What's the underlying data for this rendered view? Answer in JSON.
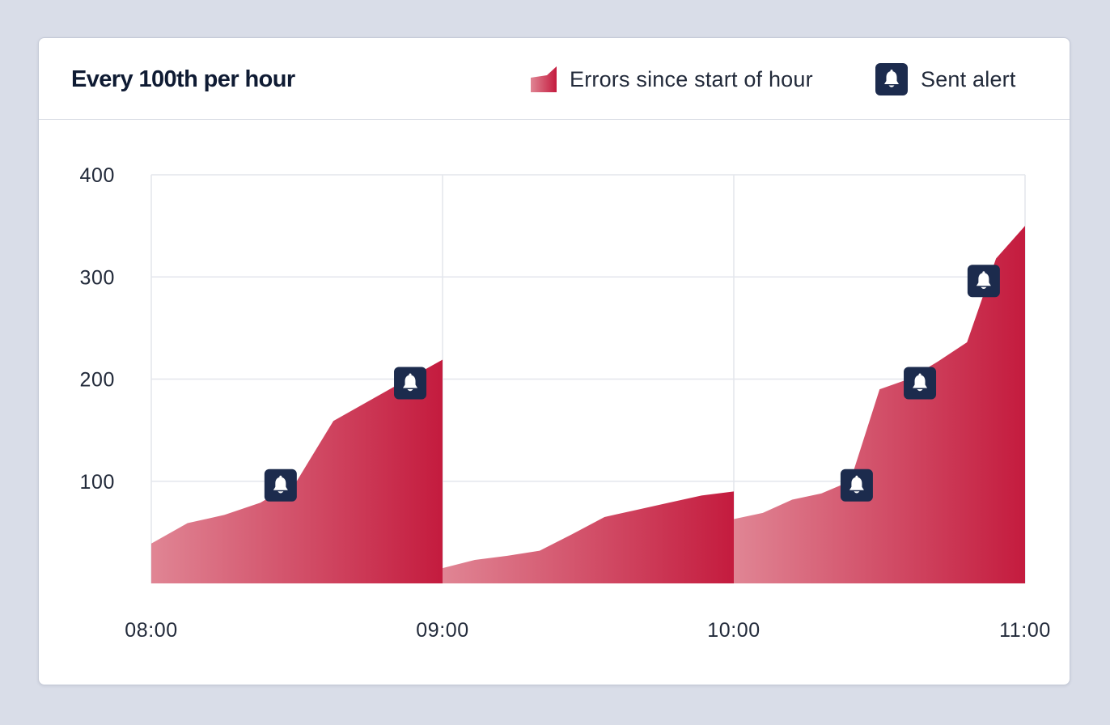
{
  "card": {
    "title": "Every 100th per hour"
  },
  "legend": {
    "errors_label": "Errors since start of hour",
    "alert_label": "Sent alert",
    "alert_icon": "bell-icon"
  },
  "colors": {
    "background": "#d9dde8",
    "area_light": "#e08594",
    "area_dark": "#c41b3e",
    "alert_badge": "#1c2b4d",
    "grid": "#e3e6ec"
  },
  "chart_data": {
    "type": "area",
    "title": "Every 100th per hour",
    "xlabel": "",
    "ylabel": "",
    "x_ticks": [
      "08:00",
      "09:00",
      "10:00",
      "11:00"
    ],
    "y_ticks": [
      100,
      200,
      300,
      400
    ],
    "ylim": [
      0,
      400
    ],
    "grid": true,
    "legend_position": "top-right",
    "series": [
      {
        "name": "Errors since start of hour",
        "segments": [
          {
            "hour": "08:00",
            "points": [
              [
                0,
                39
              ],
              [
                0.083,
                59
              ],
              [
                0.167,
                67
              ],
              [
                0.25,
                79
              ],
              [
                0.333,
                100
              ],
              [
                0.417,
                159
              ],
              [
                0.5,
                179
              ],
              [
                0.583,
                199
              ],
              [
                0.667,
                219
              ]
            ]
          },
          {
            "hour": "09:00",
            "points": [
              [
                0,
                15
              ],
              [
                0.083,
                23
              ],
              [
                0.167,
                27
              ],
              [
                0.25,
                32
              ],
              [
                0.333,
                48
              ],
              [
                0.417,
                65
              ],
              [
                0.5,
                72
              ],
              [
                0.583,
                79
              ],
              [
                0.667,
                86
              ],
              [
                0.75,
                90
              ]
            ]
          },
          {
            "hour": "10:00",
            "points": [
              [
                0,
                63
              ],
              [
                0.083,
                69
              ],
              [
                0.167,
                82
              ],
              [
                0.25,
                88
              ],
              [
                0.333,
                100
              ],
              [
                0.417,
                190
              ],
              [
                0.5,
                200
              ],
              [
                0.583,
                217
              ],
              [
                0.667,
                236
              ],
              [
                0.75,
                318
              ],
              [
                0.833,
                350
              ]
            ]
          }
        ]
      }
    ],
    "alerts": [
      {
        "hour_offset": 0.444,
        "value": 96
      },
      {
        "hour_offset": 0.889,
        "value": 196
      },
      {
        "hour_offset": 2.422,
        "value": 96
      },
      {
        "hour_offset": 2.639,
        "value": 196
      },
      {
        "hour_offset": 2.858,
        "value": 296
      }
    ]
  }
}
